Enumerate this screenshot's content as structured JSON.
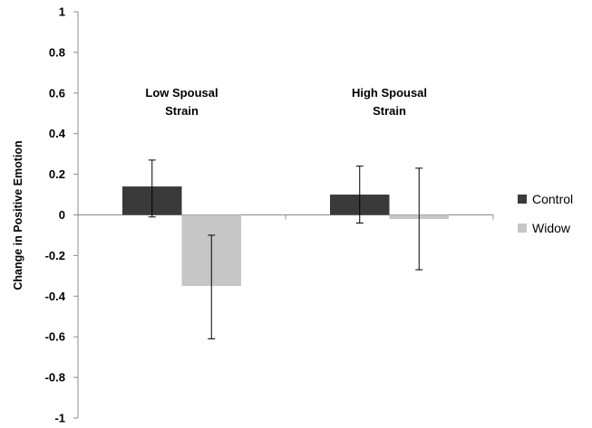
{
  "chart_data": {
    "type": "bar",
    "title": "",
    "xlabel": "",
    "ylabel": "Change in Positive Emotion",
    "ylim": [
      -1,
      1
    ],
    "yticks": [
      1,
      0.8,
      0.6,
      0.4,
      0.2,
      0,
      -0.2,
      -0.4,
      -0.6,
      -0.8,
      -1
    ],
    "ytick_labels": [
      "1",
      "0.8",
      "0.6",
      "0.4",
      "0.2",
      "0",
      "-0.2",
      "-0.4",
      "-0.6",
      "-0.8",
      "-1"
    ],
    "categories": [
      [
        "Low Spousal",
        "Strain"
      ],
      [
        "High Spousal",
        "Strain"
      ]
    ],
    "series": [
      {
        "name": "Control",
        "color": "#3a3a3a",
        "values": [
          0.14,
          0.1
        ],
        "error_low": [
          -0.01,
          -0.04
        ],
        "error_high": [
          0.27,
          0.24
        ]
      },
      {
        "name": "Widow",
        "color": "#c6c6c6",
        "values": [
          -0.35,
          -0.02
        ],
        "error_low": [
          -0.61,
          -0.27
        ],
        "error_high": [
          -0.1,
          0.23
        ]
      }
    ],
    "legend": "right",
    "grid": false
  }
}
